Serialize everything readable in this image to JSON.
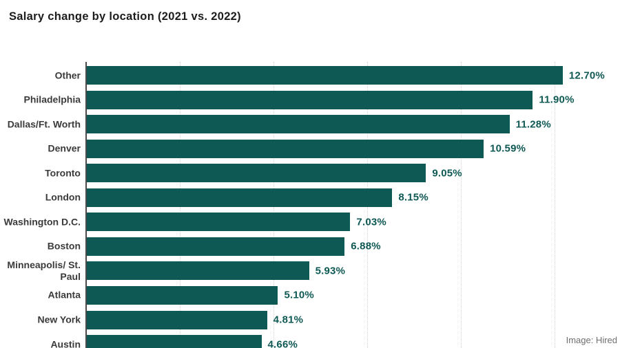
{
  "title": "Salary change by location (2021 vs. 2022)",
  "credit": "Image: Hired",
  "colors": {
    "bar": "#0f5954",
    "value_label": "#0f5954",
    "axis": "#4a4a4a",
    "gridline": "#d4d4d4",
    "category_label": "#3b3b3b",
    "title": "#1c1c1c",
    "credit": "#6f6f6f",
    "background": "#ffffff"
  },
  "chart_data": {
    "type": "bar",
    "orientation": "horizontal",
    "title": "Salary change by location (2021 vs. 2022)",
    "xlabel": "",
    "ylabel": "",
    "categories": [
      "Other",
      "Philadelphia",
      "Dallas/Ft. Worth",
      "Denver",
      "Toronto",
      "London",
      "Washington D.C.",
      "Boston",
      "Minneapolis/ St. Paul",
      "Atlanta",
      "New York",
      "Austin"
    ],
    "values": [
      12.7,
      11.9,
      11.28,
      10.59,
      9.05,
      8.15,
      7.03,
      6.88,
      5.93,
      5.1,
      4.81,
      4.66
    ],
    "value_labels": [
      "12.70%",
      "11.90%",
      "11.28%",
      "10.59%",
      "9.05%",
      "8.15%",
      "7.03%",
      "6.88%",
      "5.93%",
      "5.10%",
      "4.81%",
      "4.66%"
    ],
    "xlim": [
      0,
      12.5
    ],
    "gridlines_pct": [
      2.5,
      5.0,
      7.5,
      10.0,
      12.5
    ],
    "grid": "dotted-vertical",
    "legend": "none",
    "units": "%"
  }
}
